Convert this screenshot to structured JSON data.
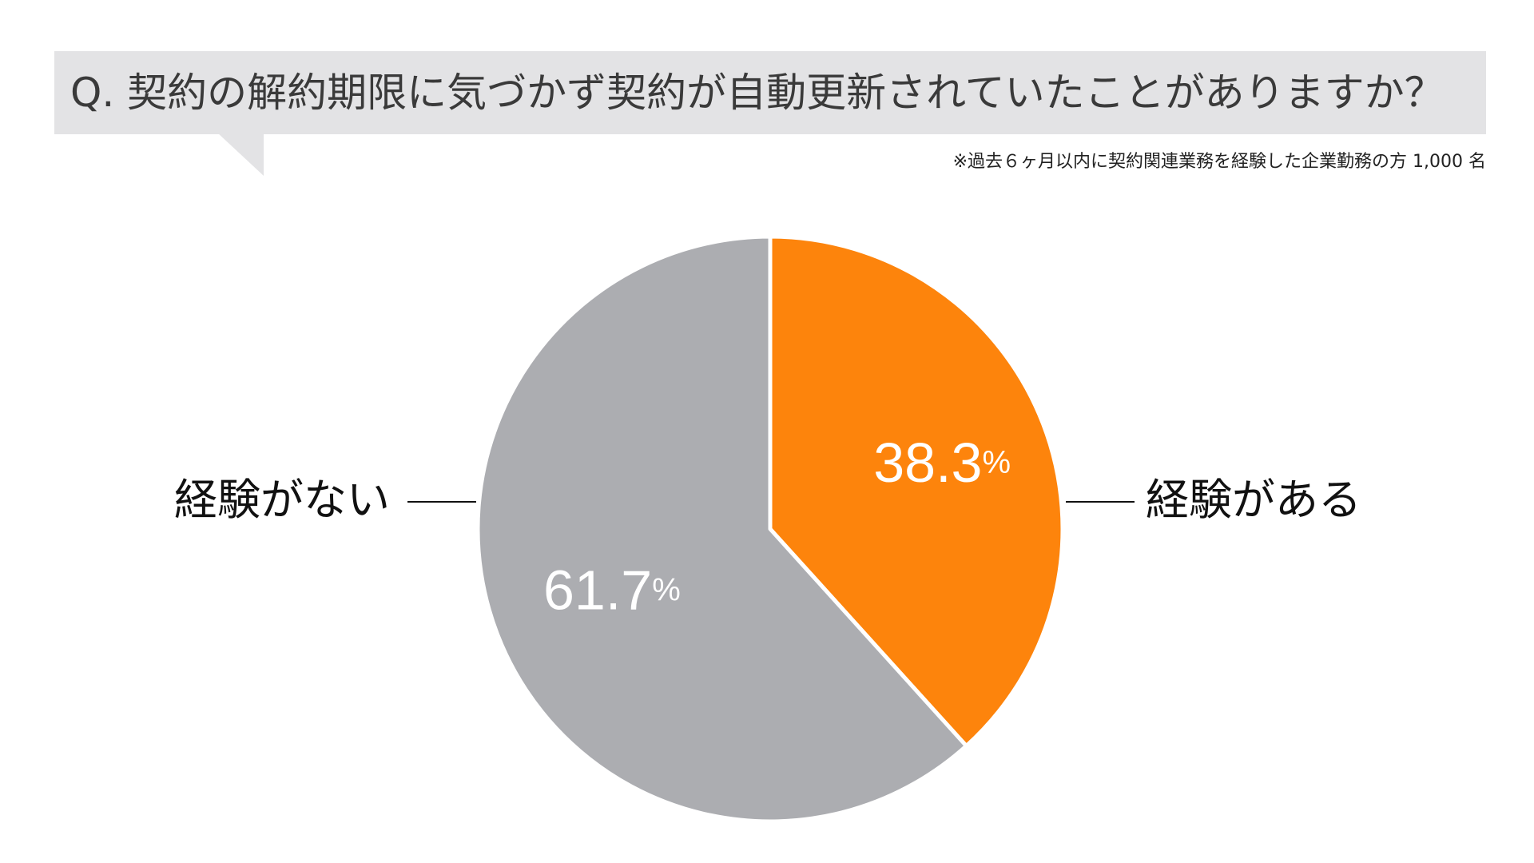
{
  "question": {
    "text": "Q. 契約の解約期限に気づかず契約が自動更新されていたことがありますか？"
  },
  "note": "※過去６ヶ月以内に契約関連業務を経験した企業勤務の方 1,000 名",
  "colors": {
    "experienced": "#fd840c",
    "not_experienced": "#acadb1",
    "question_bg": "#e3e3e5"
  },
  "chart_data": {
    "type": "pie",
    "title": "",
    "slices": [
      {
        "label": "経験がある",
        "value": 38.3,
        "value_text": "38.3",
        "unit": "%",
        "color": "#fd840c"
      },
      {
        "label": "経験がない",
        "value": 61.7,
        "value_text": "61.7",
        "unit": "%",
        "color": "#acadb1"
      }
    ],
    "start": "12 o'clock",
    "direction": "clockwise",
    "legend": "none"
  }
}
